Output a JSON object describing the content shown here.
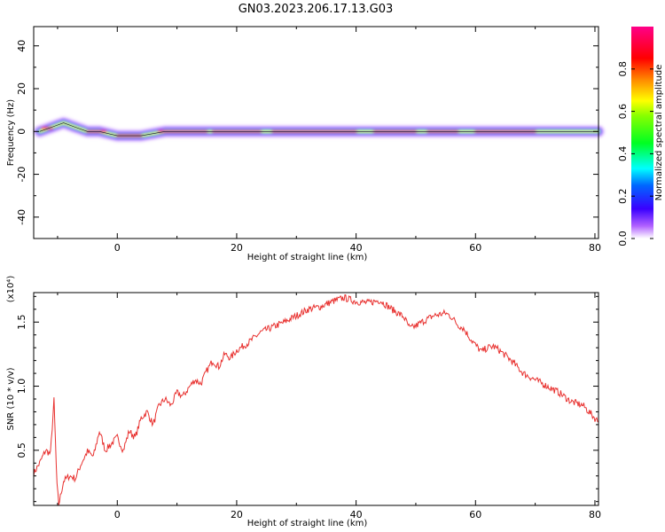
{
  "title": "GN03.2023.206.17.13.G03",
  "chart_data": [
    {
      "type": "heatmap",
      "xlabel": "Height of straight line (km)",
      "ylabel": "Frequency (Hz)",
      "xlim": [
        -14,
        80.6
      ],
      "ylim": [
        -50,
        49
      ],
      "xticks": [
        0,
        20,
        40,
        60,
        80
      ],
      "yticks": [
        40,
        20,
        0,
        -20,
        -40
      ],
      "colorbar": {
        "label": "Normalized spectral amplitude",
        "range": [
          0,
          1
        ],
        "ticks": [
          "0.0",
          "0.2",
          "0.4",
          "0.6",
          "0.8"
        ]
      },
      "ridge": [
        {
          "x": -13,
          "y": 0
        },
        {
          "x": -11,
          "y": 2
        },
        {
          "x": -9,
          "y": 4
        },
        {
          "x": -7,
          "y": 2
        },
        {
          "x": -5,
          "y": 0
        },
        {
          "x": -3,
          "y": 0
        },
        {
          "x": 0,
          "y": -2
        },
        {
          "x": 2,
          "y": -2
        },
        {
          "x": 4,
          "y": -2
        },
        {
          "x": 6,
          "y": -1
        },
        {
          "x": 8,
          "y": 0
        },
        {
          "x": 80.6,
          "y": 0
        }
      ]
    },
    {
      "type": "line",
      "xlabel": "Height of straight line (km)",
      "ylabel": "SNR (10 * v/v)",
      "yscale_label": "(x10⁴)",
      "xlim": [
        -14,
        80.6
      ],
      "ylim": [
        0.07,
        1.73
      ],
      "xticks": [
        0,
        20,
        40,
        60,
        80
      ],
      "yticks": [
        0.5,
        1.0,
        1.5
      ],
      "ytick_labels": [
        "0.5",
        "1.0",
        "1.5"
      ],
      "series": [
        {
          "color": "#e8312f",
          "points": [
            [
              -14,
              0.32
            ],
            [
              -13,
              0.4
            ],
            [
              -12,
              0.5
            ],
            [
              -11.2,
              0.47
            ],
            [
              -10.6,
              0.89
            ],
            [
              -10.1,
              0.22
            ],
            [
              -9.8,
              0.08
            ],
            [
              -9,
              0.26
            ],
            [
              -8,
              0.3
            ],
            [
              -7,
              0.28
            ],
            [
              -6,
              0.4
            ],
            [
              -5,
              0.49
            ],
            [
              -4,
              0.45
            ],
            [
              -3,
              0.65
            ],
            [
              -2,
              0.5
            ],
            [
              -1,
              0.55
            ],
            [
              0,
              0.6
            ],
            [
              1,
              0.5
            ],
            [
              2,
              0.65
            ],
            [
              3,
              0.6
            ],
            [
              4,
              0.75
            ],
            [
              5,
              0.8
            ],
            [
              6,
              0.7
            ],
            [
              7,
              0.85
            ],
            [
              8,
              0.9
            ],
            [
              9,
              0.85
            ],
            [
              10,
              0.95
            ],
            [
              11,
              0.92
            ],
            [
              12,
              0.99
            ],
            [
              13,
              1.05
            ],
            [
              14,
              1.02
            ],
            [
              15,
              1.12
            ],
            [
              16,
              1.2
            ],
            [
              17,
              1.15
            ],
            [
              18,
              1.25
            ],
            [
              19,
              1.22
            ],
            [
              20,
              1.28
            ],
            [
              22,
              1.34
            ],
            [
              24,
              1.42
            ],
            [
              26,
              1.46
            ],
            [
              28,
              1.5
            ],
            [
              30,
              1.55
            ],
            [
              32,
              1.6
            ],
            [
              34,
              1.62
            ],
            [
              36,
              1.66
            ],
            [
              38,
              1.69
            ],
            [
              40,
              1.66
            ],
            [
              42,
              1.65
            ],
            [
              44,
              1.67
            ],
            [
              46,
              1.6
            ],
            [
              48,
              1.54
            ],
            [
              49,
              1.45
            ],
            [
              50,
              1.47
            ],
            [
              51,
              1.5
            ],
            [
              53,
              1.55
            ],
            [
              55,
              1.57
            ],
            [
              56,
              1.54
            ],
            [
              57,
              1.48
            ],
            [
              58,
              1.45
            ],
            [
              59,
              1.38
            ],
            [
              60,
              1.32
            ],
            [
              61,
              1.27
            ],
            [
              62,
              1.3
            ],
            [
              63,
              1.31
            ],
            [
              64,
              1.28
            ],
            [
              66,
              1.2
            ],
            [
              68,
              1.1
            ],
            [
              70,
              1.05
            ],
            [
              72,
              1.0
            ],
            [
              74,
              0.95
            ],
            [
              76,
              0.88
            ],
            [
              78,
              0.85
            ],
            [
              80,
              0.75
            ],
            [
              80.6,
              0.72
            ]
          ]
        }
      ]
    }
  ]
}
